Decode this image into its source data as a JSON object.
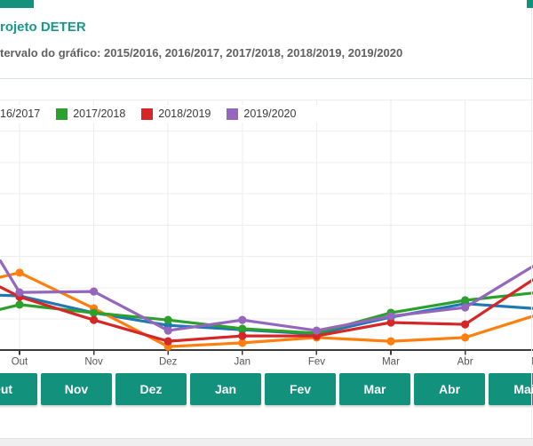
{
  "header": {
    "title": "rojeto DETER",
    "subtitle": "tervalo do gráfico: 2015/2016, 2016/2017, 2017/2018, 2018/2019, 2019/2020",
    "title_color": "#18998a"
  },
  "legend": {
    "items": [
      {
        "label": "16/2017",
        "color": null
      },
      {
        "label": "2017/2018",
        "color": "#2ca02c"
      },
      {
        "label": "2018/2019",
        "color": "#d62728"
      },
      {
        "label": "2019/2020",
        "color": "#9467bd"
      }
    ]
  },
  "chart_data": {
    "type": "line",
    "title": "",
    "xlabel": "",
    "ylabel": "",
    "categories": [
      "Out",
      "Nov",
      "Dez",
      "Jan",
      "Fev",
      "Mar",
      "Abr",
      "Mai"
    ],
    "ylim": [
      0,
      8
    ],
    "y_tick_labels_visible": false,
    "grid": true,
    "legend_position": "top-left",
    "series": [
      {
        "name": "2015/2016",
        "color": "#1f77b4",
        "x": [
          -0.26,
          0,
          1,
          2,
          3,
          4,
          5,
          6,
          6.91
        ],
        "values": [
          1.75,
          1.73,
          1.19,
          0.79,
          0.65,
          0.51,
          1.05,
          1.48,
          1.33
        ]
      },
      {
        "name": "2016/2017",
        "color": "#ff7f0e",
        "x": [
          -0.26,
          0,
          1,
          2,
          3,
          4,
          5,
          6,
          6.91
        ],
        "values": [
          2.33,
          2.47,
          1.33,
          0.11,
          0.23,
          0.4,
          0.28,
          0.4,
          1.08
        ]
      },
      {
        "name": "2017/2018",
        "color": "#2ca02c",
        "x": [
          -0.26,
          0,
          1,
          2,
          3,
          4,
          5,
          6,
          6.91
        ],
        "values": [
          1.3,
          1.45,
          1.19,
          0.96,
          0.68,
          0.54,
          1.19,
          1.59,
          1.82
        ]
      },
      {
        "name": "2018/2019",
        "color": "#d62728",
        "x": [
          -0.26,
          0,
          1,
          2,
          3,
          4,
          5,
          6,
          6.91
        ],
        "values": [
          2.01,
          1.7,
          0.96,
          0.28,
          0.45,
          0.45,
          0.88,
          0.82,
          2.24
        ]
      },
      {
        "name": "2019/2020",
        "color": "#9467bd",
        "x": [
          -0.26,
          0,
          1,
          2,
          3,
          4,
          5,
          6,
          6.91
        ],
        "values": [
          2.85,
          1.84,
          1.87,
          0.62,
          0.96,
          0.62,
          1.08,
          1.36,
          2.67
        ]
      }
    ]
  },
  "month_buttons": {
    "labels": [
      "Out",
      "Nov",
      "Dez",
      "Jan",
      "Fev",
      "Mar",
      "Abr",
      "Mai"
    ],
    "color": "#12917d"
  },
  "colors": {
    "accent_teal": "#12917d",
    "divider": "#d7e2e0",
    "grid": "#ededed",
    "axis": "#3c3c3c",
    "axis_text": "#555555",
    "bottom_strip": "#efefef"
  }
}
